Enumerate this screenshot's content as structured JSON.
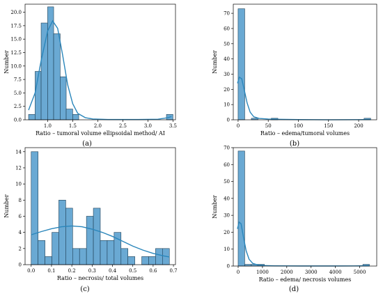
{
  "chart_data": [
    {
      "type": "histogram",
      "panel": "(a)",
      "xlabel": "Ratio – tumoral volume ellipsoidal method/ AI",
      "ylabel": "Number",
      "xlim": [
        0.55,
        3.55
      ],
      "ylim": [
        0,
        21.5
      ],
      "xticks": [
        "0.5",
        "1.0",
        "1.5",
        "2.0",
        "2.5",
        "3.0",
        "3.5"
      ],
      "yticks": [
        "0.0",
        "2.5",
        "5.0",
        "7.5",
        "10.0",
        "12.5",
        "15.0",
        "17.5",
        "20.0"
      ],
      "bin_edges": [
        0.62,
        0.75,
        0.87,
        1.0,
        1.12,
        1.25,
        1.37,
        1.5,
        1.62,
        1.75,
        1.87,
        2.0,
        2.12,
        2.25,
        2.37,
        2.5,
        2.62,
        2.75,
        2.87,
        3.0,
        3.12,
        3.25,
        3.37,
        3.5
      ],
      "counts": [
        1,
        9,
        18,
        21,
        16,
        8,
        2,
        1,
        0,
        0,
        0,
        0,
        0,
        0,
        0,
        0,
        0,
        0,
        0,
        0,
        0,
        0,
        1
      ],
      "kde": [
        [
          0.62,
          1.8
        ],
        [
          0.75,
          5
        ],
        [
          0.87,
          11
        ],
        [
          1.0,
          16.5
        ],
        [
          1.1,
          18.4
        ],
        [
          1.2,
          17
        ],
        [
          1.3,
          12
        ],
        [
          1.4,
          6.5
        ],
        [
          1.5,
          3
        ],
        [
          1.6,
          1.2
        ],
        [
          1.75,
          0.4
        ],
        [
          1.9,
          0.15
        ],
        [
          2.2,
          0.05
        ],
        [
          2.8,
          0.05
        ],
        [
          3.2,
          0.1
        ],
        [
          3.4,
          0.4
        ],
        [
          3.47,
          0.6
        ]
      ]
    },
    {
      "type": "histogram",
      "panel": "(b)",
      "xlabel": "Ratio – edema/tumoral volumes",
      "ylabel": "Number",
      "xlim": [
        -8,
        230
      ],
      "ylim": [
        0,
        76
      ],
      "xticks": [
        "0",
        "50",
        "100",
        "150",
        "200"
      ],
      "yticks": [
        "0",
        "10",
        "20",
        "30",
        "40",
        "50",
        "60",
        "70"
      ],
      "bin_edges": [
        0,
        11,
        22,
        33,
        44,
        55,
        66,
        77,
        88,
        99,
        110,
        121,
        132,
        143,
        154,
        165,
        176,
        187,
        198,
        209,
        220
      ],
      "counts": [
        73,
        0,
        1,
        0,
        0,
        1,
        0,
        0,
        0,
        0,
        0,
        0,
        0,
        0,
        0,
        0,
        0,
        0,
        0,
        1
      ],
      "kde": [
        [
          -1,
          24
        ],
        [
          2,
          28
        ],
        [
          6,
          27
        ],
        [
          10,
          20
        ],
        [
          15,
          11
        ],
        [
          20,
          5
        ],
        [
          26,
          2
        ],
        [
          35,
          0.9
        ],
        [
          50,
          0.5
        ],
        [
          70,
          0.3
        ],
        [
          100,
          0.15
        ],
        [
          150,
          0.05
        ],
        [
          200,
          0.1
        ],
        [
          220,
          0.2
        ]
      ]
    },
    {
      "type": "histogram",
      "panel": "(c)",
      "xlabel": "Ratio – necrosis/ total volumes",
      "ylabel": "Number",
      "xlim": [
        -0.03,
        0.71
      ],
      "ylim": [
        0,
        14.5
      ],
      "xticks": [
        "0.0",
        "0.1",
        "0.2",
        "0.3",
        "0.4",
        "0.5",
        "0.6",
        "0.7"
      ],
      "yticks": [
        "0",
        "2",
        "4",
        "6",
        "8",
        "10",
        "12",
        "14"
      ],
      "bin_edges": [
        0,
        0.034,
        0.068,
        0.102,
        0.136,
        0.17,
        0.204,
        0.238,
        0.272,
        0.306,
        0.34,
        0.374,
        0.408,
        0.442,
        0.476,
        0.51,
        0.544,
        0.578,
        0.612,
        0.646,
        0.68
      ],
      "counts": [
        14,
        3,
        1,
        4,
        8,
        7,
        2,
        2,
        6,
        7,
        3,
        3,
        4,
        2,
        1,
        0,
        1,
        1,
        2,
        2
      ],
      "kde": [
        [
          0.0,
          3.7
        ],
        [
          0.05,
          4.1
        ],
        [
          0.1,
          4.45
        ],
        [
          0.15,
          4.7
        ],
        [
          0.2,
          4.8
        ],
        [
          0.25,
          4.7
        ],
        [
          0.3,
          4.4
        ],
        [
          0.35,
          4.0
        ],
        [
          0.4,
          3.5
        ],
        [
          0.45,
          2.9
        ],
        [
          0.5,
          2.3
        ],
        [
          0.55,
          1.8
        ],
        [
          0.6,
          1.4
        ],
        [
          0.65,
          1.1
        ],
        [
          0.68,
          0.95
        ]
      ]
    },
    {
      "type": "histogram",
      "panel": "(d)",
      "xlabel": "Ratio – edema/ necrosis volumes",
      "ylabel": "Number",
      "xlim": [
        -200,
        5700
      ],
      "ylim": [
        0,
        70
      ],
      "xticks": [
        "0",
        "1000",
        "2000",
        "3000",
        "4000",
        "5000"
      ],
      "yticks": [
        "0",
        "10",
        "20",
        "30",
        "40",
        "50",
        "60",
        "70"
      ],
      "bin_edges": [
        0,
        270,
        540,
        810,
        1080,
        1350,
        1620,
        1890,
        2160,
        2430,
        2700,
        2970,
        3240,
        3510,
        3780,
        4050,
        4320,
        4590,
        4860,
        5130,
        5400
      ],
      "counts": [
        68,
        1,
        1,
        1,
        0,
        0,
        0,
        0,
        0,
        0,
        0,
        0,
        0,
        0,
        0,
        0,
        0,
        0,
        0,
        1
      ],
      "kde": [
        [
          -30,
          22
        ],
        [
          40,
          26
        ],
        [
          120,
          25
        ],
        [
          220,
          17
        ],
        [
          330,
          9
        ],
        [
          450,
          4
        ],
        [
          600,
          1.6
        ],
        [
          800,
          0.7
        ],
        [
          1100,
          0.3
        ],
        [
          1500,
          0.15
        ],
        [
          2500,
          0.05
        ],
        [
          4000,
          0.05
        ],
        [
          5000,
          0.1
        ],
        [
          5400,
          0.2
        ]
      ]
    }
  ]
}
